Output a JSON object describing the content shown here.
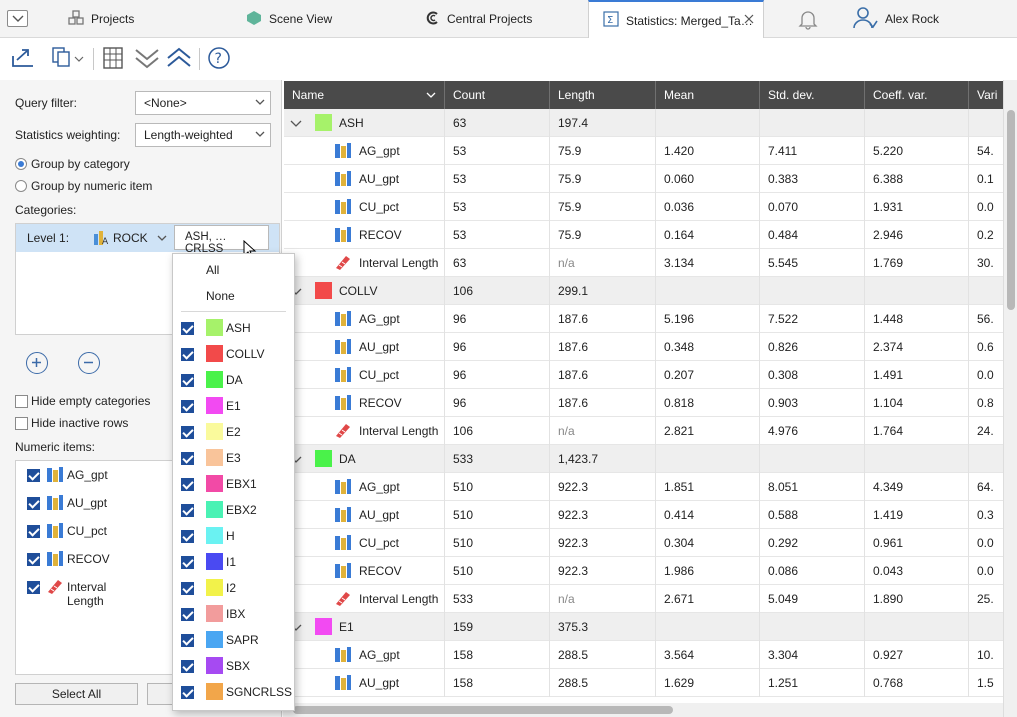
{
  "tabs": [
    {
      "label": "Projects",
      "icon": "projects-icon"
    },
    {
      "label": "Scene View",
      "icon": "scene-view-icon"
    },
    {
      "label": "Central Projects",
      "icon": "central-icon"
    },
    {
      "label": "Statistics: Merged_Ta…",
      "icon": "statistics-icon",
      "active": true
    }
  ],
  "user": {
    "name": "Alex Rock"
  },
  "left": {
    "query_filter_label": "Query filter:",
    "query_filter_value": "<None>",
    "weighting_label": "Statistics weighting:",
    "weighting_value": "Length-weighted",
    "group_by_category": "Group by category",
    "group_by_numeric": "Group by numeric item",
    "categories_label": "Categories:",
    "level_label": "Level 1:",
    "level_column": "ROCK",
    "level_value": "ASH, …CRLSS",
    "hide_empty": "Hide empty categories",
    "hide_inactive": "Hide inactive rows",
    "numeric_items_label": "Numeric items:",
    "numeric_items": [
      "AG_gpt",
      "AU_gpt",
      "CU_pct",
      "RECOV",
      "Interval Length"
    ],
    "select_all": "Select All"
  },
  "popup": {
    "all": "All",
    "none": "None",
    "items": [
      {
        "name": "ASH",
        "color": "#a6f26a"
      },
      {
        "name": "COLLV",
        "color": "#f24a4a"
      },
      {
        "name": "DA",
        "color": "#4af24a"
      },
      {
        "name": "E1",
        "color": "#f24af2"
      },
      {
        "name": "E2",
        "color": "#fafa9c"
      },
      {
        "name": "E3",
        "color": "#f9c49a"
      },
      {
        "name": "EBX1",
        "color": "#f24aa6"
      },
      {
        "name": "EBX2",
        "color": "#4af2b4"
      },
      {
        "name": "H",
        "color": "#6af2f2"
      },
      {
        "name": "I1",
        "color": "#4a4af2"
      },
      {
        "name": "I2",
        "color": "#f2f24a"
      },
      {
        "name": "IBX",
        "color": "#f29c9c"
      },
      {
        "name": "SAPR",
        "color": "#4aa6f2"
      },
      {
        "name": "SBX",
        "color": "#a64af2"
      },
      {
        "name": "SGNCRLSS",
        "color": "#f2a64a"
      }
    ]
  },
  "grid": {
    "headers": [
      "Name",
      "Count",
      "Length",
      "Mean",
      "Std. dev.",
      "Coeff. var.",
      "Vari"
    ],
    "rows": [
      {
        "type": "cat",
        "name": "ASH",
        "color": "#a6f26a",
        "count": "63",
        "length": "197.4",
        "mean": "",
        "std": "",
        "cv": "",
        "var": ""
      },
      {
        "type": "num",
        "name": "AG_gpt",
        "count": "53",
        "length": "75.9",
        "mean": "1.420",
        "std": "7.411",
        "cv": "5.220",
        "var": "54."
      },
      {
        "type": "num",
        "name": "AU_gpt",
        "count": "53",
        "length": "75.9",
        "mean": "0.060",
        "std": "0.383",
        "cv": "6.388",
        "var": "0.1"
      },
      {
        "type": "num",
        "name": "CU_pct",
        "count": "53",
        "length": "75.9",
        "mean": "0.036",
        "std": "0.070",
        "cv": "1.931",
        "var": "0.0"
      },
      {
        "type": "num",
        "name": "RECOV",
        "count": "53",
        "length": "75.9",
        "mean": "0.164",
        "std": "0.484",
        "cv": "2.946",
        "var": "0.2"
      },
      {
        "type": "len",
        "name": "Interval Length",
        "count": "63",
        "length": "n/a",
        "mean": "3.134",
        "std": "5.545",
        "cv": "1.769",
        "var": "30."
      },
      {
        "type": "cat",
        "name": "COLLV",
        "color": "#f24a4a",
        "count": "106",
        "length": "299.1",
        "mean": "",
        "std": "",
        "cv": "",
        "var": ""
      },
      {
        "type": "num",
        "name": "AG_gpt",
        "count": "96",
        "length": "187.6",
        "mean": "5.196",
        "std": "7.522",
        "cv": "1.448",
        "var": "56."
      },
      {
        "type": "num",
        "name": "AU_gpt",
        "count": "96",
        "length": "187.6",
        "mean": "0.348",
        "std": "0.826",
        "cv": "2.374",
        "var": "0.6"
      },
      {
        "type": "num",
        "name": "CU_pct",
        "count": "96",
        "length": "187.6",
        "mean": "0.207",
        "std": "0.308",
        "cv": "1.491",
        "var": "0.0"
      },
      {
        "type": "num",
        "name": "RECOV",
        "count": "96",
        "length": "187.6",
        "mean": "0.818",
        "std": "0.903",
        "cv": "1.104",
        "var": "0.8"
      },
      {
        "type": "len",
        "name": "Interval Length",
        "count": "106",
        "length": "n/a",
        "mean": "2.821",
        "std": "4.976",
        "cv": "1.764",
        "var": "24."
      },
      {
        "type": "cat",
        "name": "DA",
        "color": "#4af24a",
        "count": "533",
        "length": "1,423.7",
        "mean": "",
        "std": "",
        "cv": "",
        "var": ""
      },
      {
        "type": "num",
        "name": "AG_gpt",
        "count": "510",
        "length": "922.3",
        "mean": "1.851",
        "std": "8.051",
        "cv": "4.349",
        "var": "64."
      },
      {
        "type": "num",
        "name": "AU_gpt",
        "count": "510",
        "length": "922.3",
        "mean": "0.414",
        "std": "0.588",
        "cv": "1.419",
        "var": "0.3"
      },
      {
        "type": "num",
        "name": "CU_pct",
        "count": "510",
        "length": "922.3",
        "mean": "0.304",
        "std": "0.292",
        "cv": "0.961",
        "var": "0.0"
      },
      {
        "type": "num",
        "name": "RECOV",
        "count": "510",
        "length": "922.3",
        "mean": "1.986",
        "std": "0.086",
        "cv": "0.043",
        "var": "0.0"
      },
      {
        "type": "len",
        "name": "Interval Length",
        "count": "533",
        "length": "n/a",
        "mean": "2.671",
        "std": "5.049",
        "cv": "1.890",
        "var": "25."
      },
      {
        "type": "cat",
        "name": "E1",
        "color": "#f24af2",
        "count": "159",
        "length": "375.3",
        "mean": "",
        "std": "",
        "cv": "",
        "var": ""
      },
      {
        "type": "num",
        "name": "AG_gpt",
        "count": "158",
        "length": "288.5",
        "mean": "3.564",
        "std": "3.304",
        "cv": "0.927",
        "var": "10."
      },
      {
        "type": "num",
        "name": "AU_gpt",
        "count": "158",
        "length": "288.5",
        "mean": "1.629",
        "std": "1.251",
        "cv": "0.768",
        "var": "1.5"
      }
    ]
  }
}
